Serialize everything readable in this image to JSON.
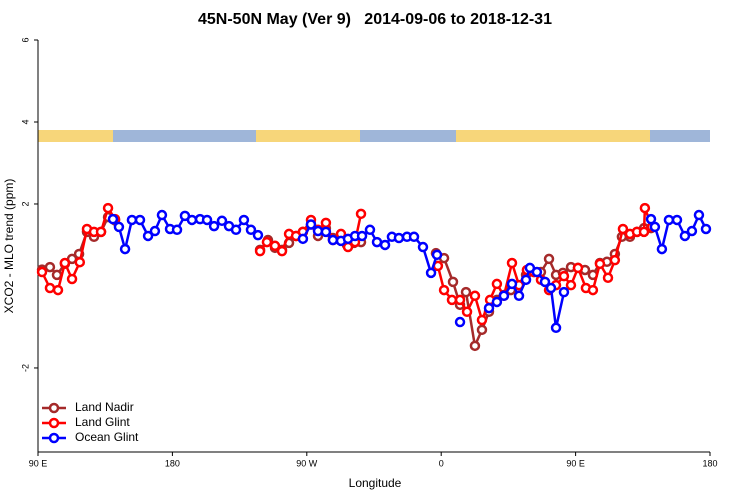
{
  "chart_data": {
    "type": "line",
    "title": "45N-50N May (Ver 9)   2014-09-06 to 2018-12-31",
    "x_label": "Longitude",
    "y_label": "XCO2 - MLO trend (ppm)",
    "xlim": [
      90,
      540
    ],
    "xticks": [
      {
        "value": 90,
        "label": "90 E"
      },
      180,
      {
        "value": 270,
        "label": "90 W"
      },
      {
        "value": 360,
        "label": "0"
      },
      {
        "value": 450,
        "label": "90 E"
      },
      {
        "value": 540,
        "label": "180"
      }
    ],
    "ylim": [
      -4.05,
      6
    ],
    "yticks": [
      -2,
      2,
      4,
      6
    ],
    "legend": "bottom-left",
    "series": [
      {
        "name": "Land Nadir",
        "color": "#a52a2a",
        "x": [
          92.7,
          98,
          102.7,
          108,
          112.8,
          117.5,
          122.8,
          127.5,
          132.2,
          136.9,
          141.6,
          null,
          238.7,
          244,
          248.7,
          253.4,
          258.1,
          262.8,
          267.4,
          272.8,
          277.5,
          282.8,
          287.5,
          292.2,
          296.9,
          301.6,
          306.3,
          null,
          356.5,
          361.9,
          367.9,
          372.6,
          376.6,
          382.6,
          387.3,
          392,
          397.3,
          402,
          406.7,
          412.1,
          416.8,
          422.1,
          426.8,
          432.2,
          436.9,
          441.5,
          446.9,
          451.6,
          456.3,
          461.6,
          466.3,
          471,
          476.3,
          481,
          486.4,
          491.1,
          495.8,
          500.5
        ],
        "values": [
          0.4,
          0.46,
          0.27,
          0.54,
          0.66,
          0.78,
          1.32,
          1.2,
          1.32,
          1.68,
          1.6,
          null,
          0.88,
          1.12,
          0.93,
          0.88,
          1.05,
          1.22,
          1.32,
          1.5,
          1.22,
          1.41,
          1.17,
          1.12,
          1.0,
          1.05,
          1.07,
          null,
          0.8,
          0.68,
          0.1,
          -0.46,
          -0.15,
          -1.46,
          -1.07,
          -0.63,
          -0.34,
          -0.22,
          -0.1,
          0.02,
          0.27,
          0.34,
          0.34,
          0.66,
          0.27,
          0.32,
          0.46,
          0.44,
          0.39,
          0.27,
          0.56,
          0.59,
          0.78,
          1.2,
          1.2,
          1.32,
          1.41,
          1.41
        ]
      },
      {
        "name": "Land Glint",
        "color": "#ff0000",
        "x": [
          92.7,
          98,
          103.4,
          108,
          112.8,
          118,
          122.8,
          127.5,
          132.2,
          136.9,
          141.6,
          null,
          238.7,
          243.3,
          248.7,
          253.4,
          258.1,
          262.8,
          267.4,
          272.8,
          277.5,
          282.8,
          287.5,
          292.9,
          297.6,
          302.3,
          306.3,
          null,
          357.8,
          361.9,
          367.2,
          372.6,
          377.3,
          382.6,
          387.3,
          392.7,
          397.3,
          402,
          407.4,
          412.1,
          417.4,
          422.1,
          426.8,
          432.2,
          436.9,
          442.2,
          446.9,
          451.6,
          456.9,
          461.6,
          466.3,
          471.7,
          476.3,
          481.7,
          486.4,
          491.1,
          495.8,
          496.4,
          501.1
        ],
        "values": [
          0.34,
          -0.05,
          -0.1,
          0.56,
          0.17,
          0.58,
          1.39,
          1.32,
          1.32,
          1.9,
          1.63,
          null,
          0.85,
          1.07,
          0.98,
          0.85,
          1.27,
          1.22,
          1.32,
          1.61,
          1.37,
          1.54,
          1.12,
          1.27,
          0.95,
          1.07,
          1.76,
          null,
          0.49,
          -0.1,
          -0.34,
          -0.34,
          -0.63,
          -0.24,
          -0.83,
          -0.34,
          0.05,
          -0.24,
          0.56,
          0.02,
          0.39,
          0.34,
          0.15,
          -0.1,
          0.02,
          0.24,
          0.02,
          0.44,
          -0.05,
          -0.1,
          0.54,
          0.2,
          0.63,
          1.39,
          1.27,
          1.32,
          1.32,
          1.9,
          1.44
        ]
      },
      {
        "name": "Ocean Glint",
        "color": "#0000ff",
        "x": [
          140.2,
          144.2,
          148.3,
          152.9,
          158.3,
          163.7,
          168.3,
          173,
          178.4,
          183.1,
          188.4,
          193.1,
          198.5,
          203.2,
          207.9,
          213.2,
          217.9,
          222.6,
          227.9,
          232.6,
          237.3,
          null,
          267.4,
          272.8,
          277.5,
          282.8,
          287.5,
          292.9,
          297.6,
          302.3,
          307,
          312.3,
          317,
          322.4,
          327,
          331.7,
          337.1,
          341.8,
          347.8,
          353.2,
          357.2,
          null,
          372.6,
          null,
          392,
          397.3,
          402,
          407.4,
          412.1,
          416.8,
          419.4,
          424.1,
          429.5,
          433.5,
          436.9,
          442.2,
          null,
          500.5,
          503.1,
          507.8,
          512.5,
          517.9,
          523.2,
          527.9,
          532.6,
          537.3
        ],
        "values": [
          1.63,
          1.44,
          0.9,
          1.61,
          1.61,
          1.22,
          1.34,
          1.73,
          1.39,
          1.37,
          1.71,
          1.61,
          1.63,
          1.61,
          1.46,
          1.59,
          1.46,
          1.37,
          1.61,
          1.37,
          1.24,
          null,
          1.15,
          1.5,
          1.34,
          1.32,
          1.12,
          1.1,
          1.15,
          1.22,
          1.22,
          1.37,
          1.07,
          1.0,
          1.2,
          1.17,
          1.2,
          1.2,
          0.95,
          0.32,
          0.76,
          null,
          -0.88,
          null,
          -0.54,
          -0.39,
          -0.24,
          0.05,
          -0.24,
          0.15,
          0.44,
          0.34,
          0.1,
          -0.05,
          -1.02,
          -0.15,
          null,
          1.63,
          1.44,
          0.9,
          1.61,
          1.61,
          1.22,
          1.34,
          1.73,
          1.39
        ]
      }
    ]
  }
}
